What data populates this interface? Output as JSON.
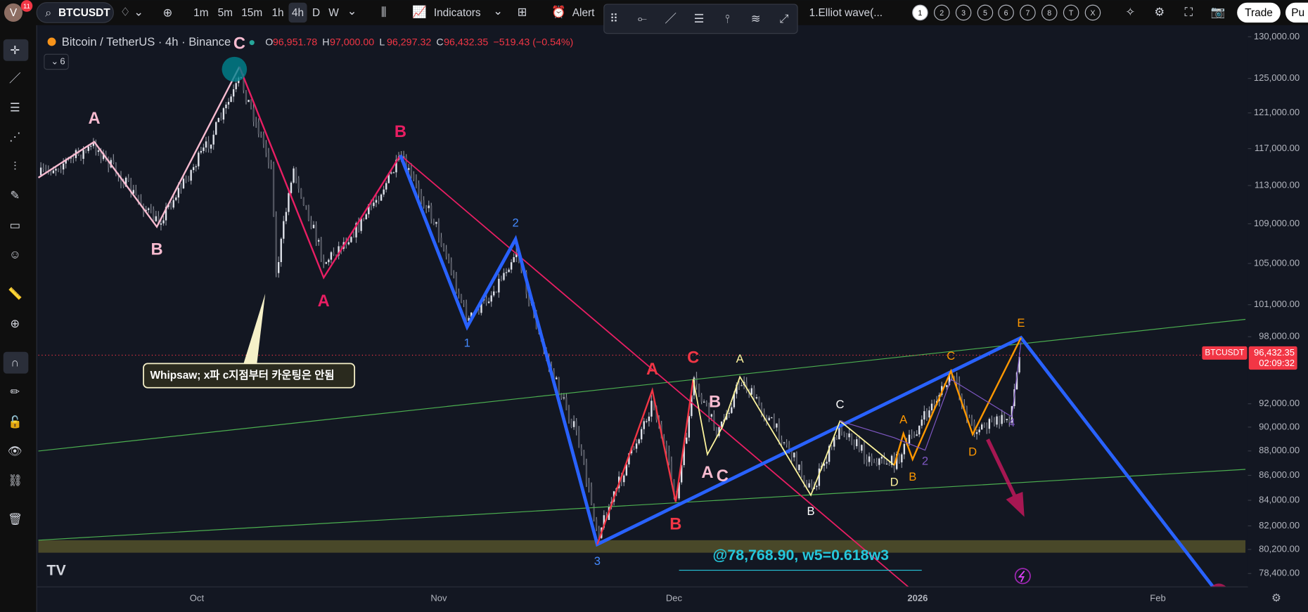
{
  "top_bar": {
    "avatar": "V",
    "badge": "11",
    "symbol": "BTCUSDT",
    "timeframes": [
      "1m",
      "5m",
      "15m",
      "1h",
      "4h",
      "D",
      "W"
    ],
    "active_timeframe": "4h",
    "indicators": "Indicators",
    "alert": "Alert",
    "template": "1.Elliot wave(...",
    "wave_degrees": [
      "1",
      "2",
      "3",
      "5",
      "6",
      "7",
      "8",
      "T",
      "X"
    ],
    "trade": "Trade",
    "publish": "Pu"
  },
  "legend": {
    "title": "Bitcoin / TetherUS · 4h · Binance",
    "ohlc": [
      {
        "key": "O",
        "value": "96,951.78"
      },
      {
        "key": "H",
        "value": "97,000.00"
      },
      {
        "key": "L",
        "value": "96,297.32"
      },
      {
        "key": "C",
        "value": "96,432.35"
      }
    ],
    "change": "−519.43 (−0.54%)",
    "indicator_count": "6"
  },
  "price_axis": {
    "scale": "log",
    "ylim": [
      78400,
      130000
    ],
    "ticks": [
      {
        "value": 130000,
        "label": "130,000.00"
      },
      {
        "value": 125000,
        "label": "125,000.00"
      },
      {
        "value": 121000,
        "label": "121,000.00"
      },
      {
        "value": 117000,
        "label": "117,000.00"
      },
      {
        "value": 113000,
        "label": "113,000.00"
      },
      {
        "value": 109000,
        "label": "109,000.00"
      },
      {
        "value": 105000,
        "label": "105,000.00"
      },
      {
        "value": 101000,
        "label": "101,000.00"
      },
      {
        "value": 98000,
        "label": "98,000.00"
      },
      {
        "value": 92000,
        "label": "92,000.00"
      },
      {
        "value": 90000,
        "label": "90,000.00"
      },
      {
        "value": 88000,
        "label": "88,000.00"
      },
      {
        "value": 86000,
        "label": "86,000.00"
      },
      {
        "value": 84000,
        "label": "84,000.00"
      },
      {
        "value": 82000,
        "label": "82,000.00"
      },
      {
        "value": 80200,
        "label": "80,200.00"
      },
      {
        "value": 78400,
        "label": "78,400.00"
      }
    ]
  },
  "last_price": {
    "symbol": "BTCUSDT",
    "price": {
      "value": 96432.35,
      "label": "96,432.35"
    },
    "countdown": "02:09:32"
  },
  "time_axis": [
    "Oct",
    "Nov",
    "Dec",
    "2026",
    "Feb"
  ],
  "annotations": {
    "whipsaw": "Whipsaw;  x파  c지점부터 카운팅은 안됨",
    "target": "@78,768.90, w5=0.618w3"
  },
  "wave_labels": [
    "A",
    "B",
    "C",
    "A",
    "B",
    "2",
    "1",
    "3",
    "A",
    "C",
    "B",
    "A",
    "B",
    "A",
    "C",
    "B",
    "C",
    "D",
    "A",
    "B",
    "2",
    "C",
    "D",
    "4",
    "E"
  ]
}
